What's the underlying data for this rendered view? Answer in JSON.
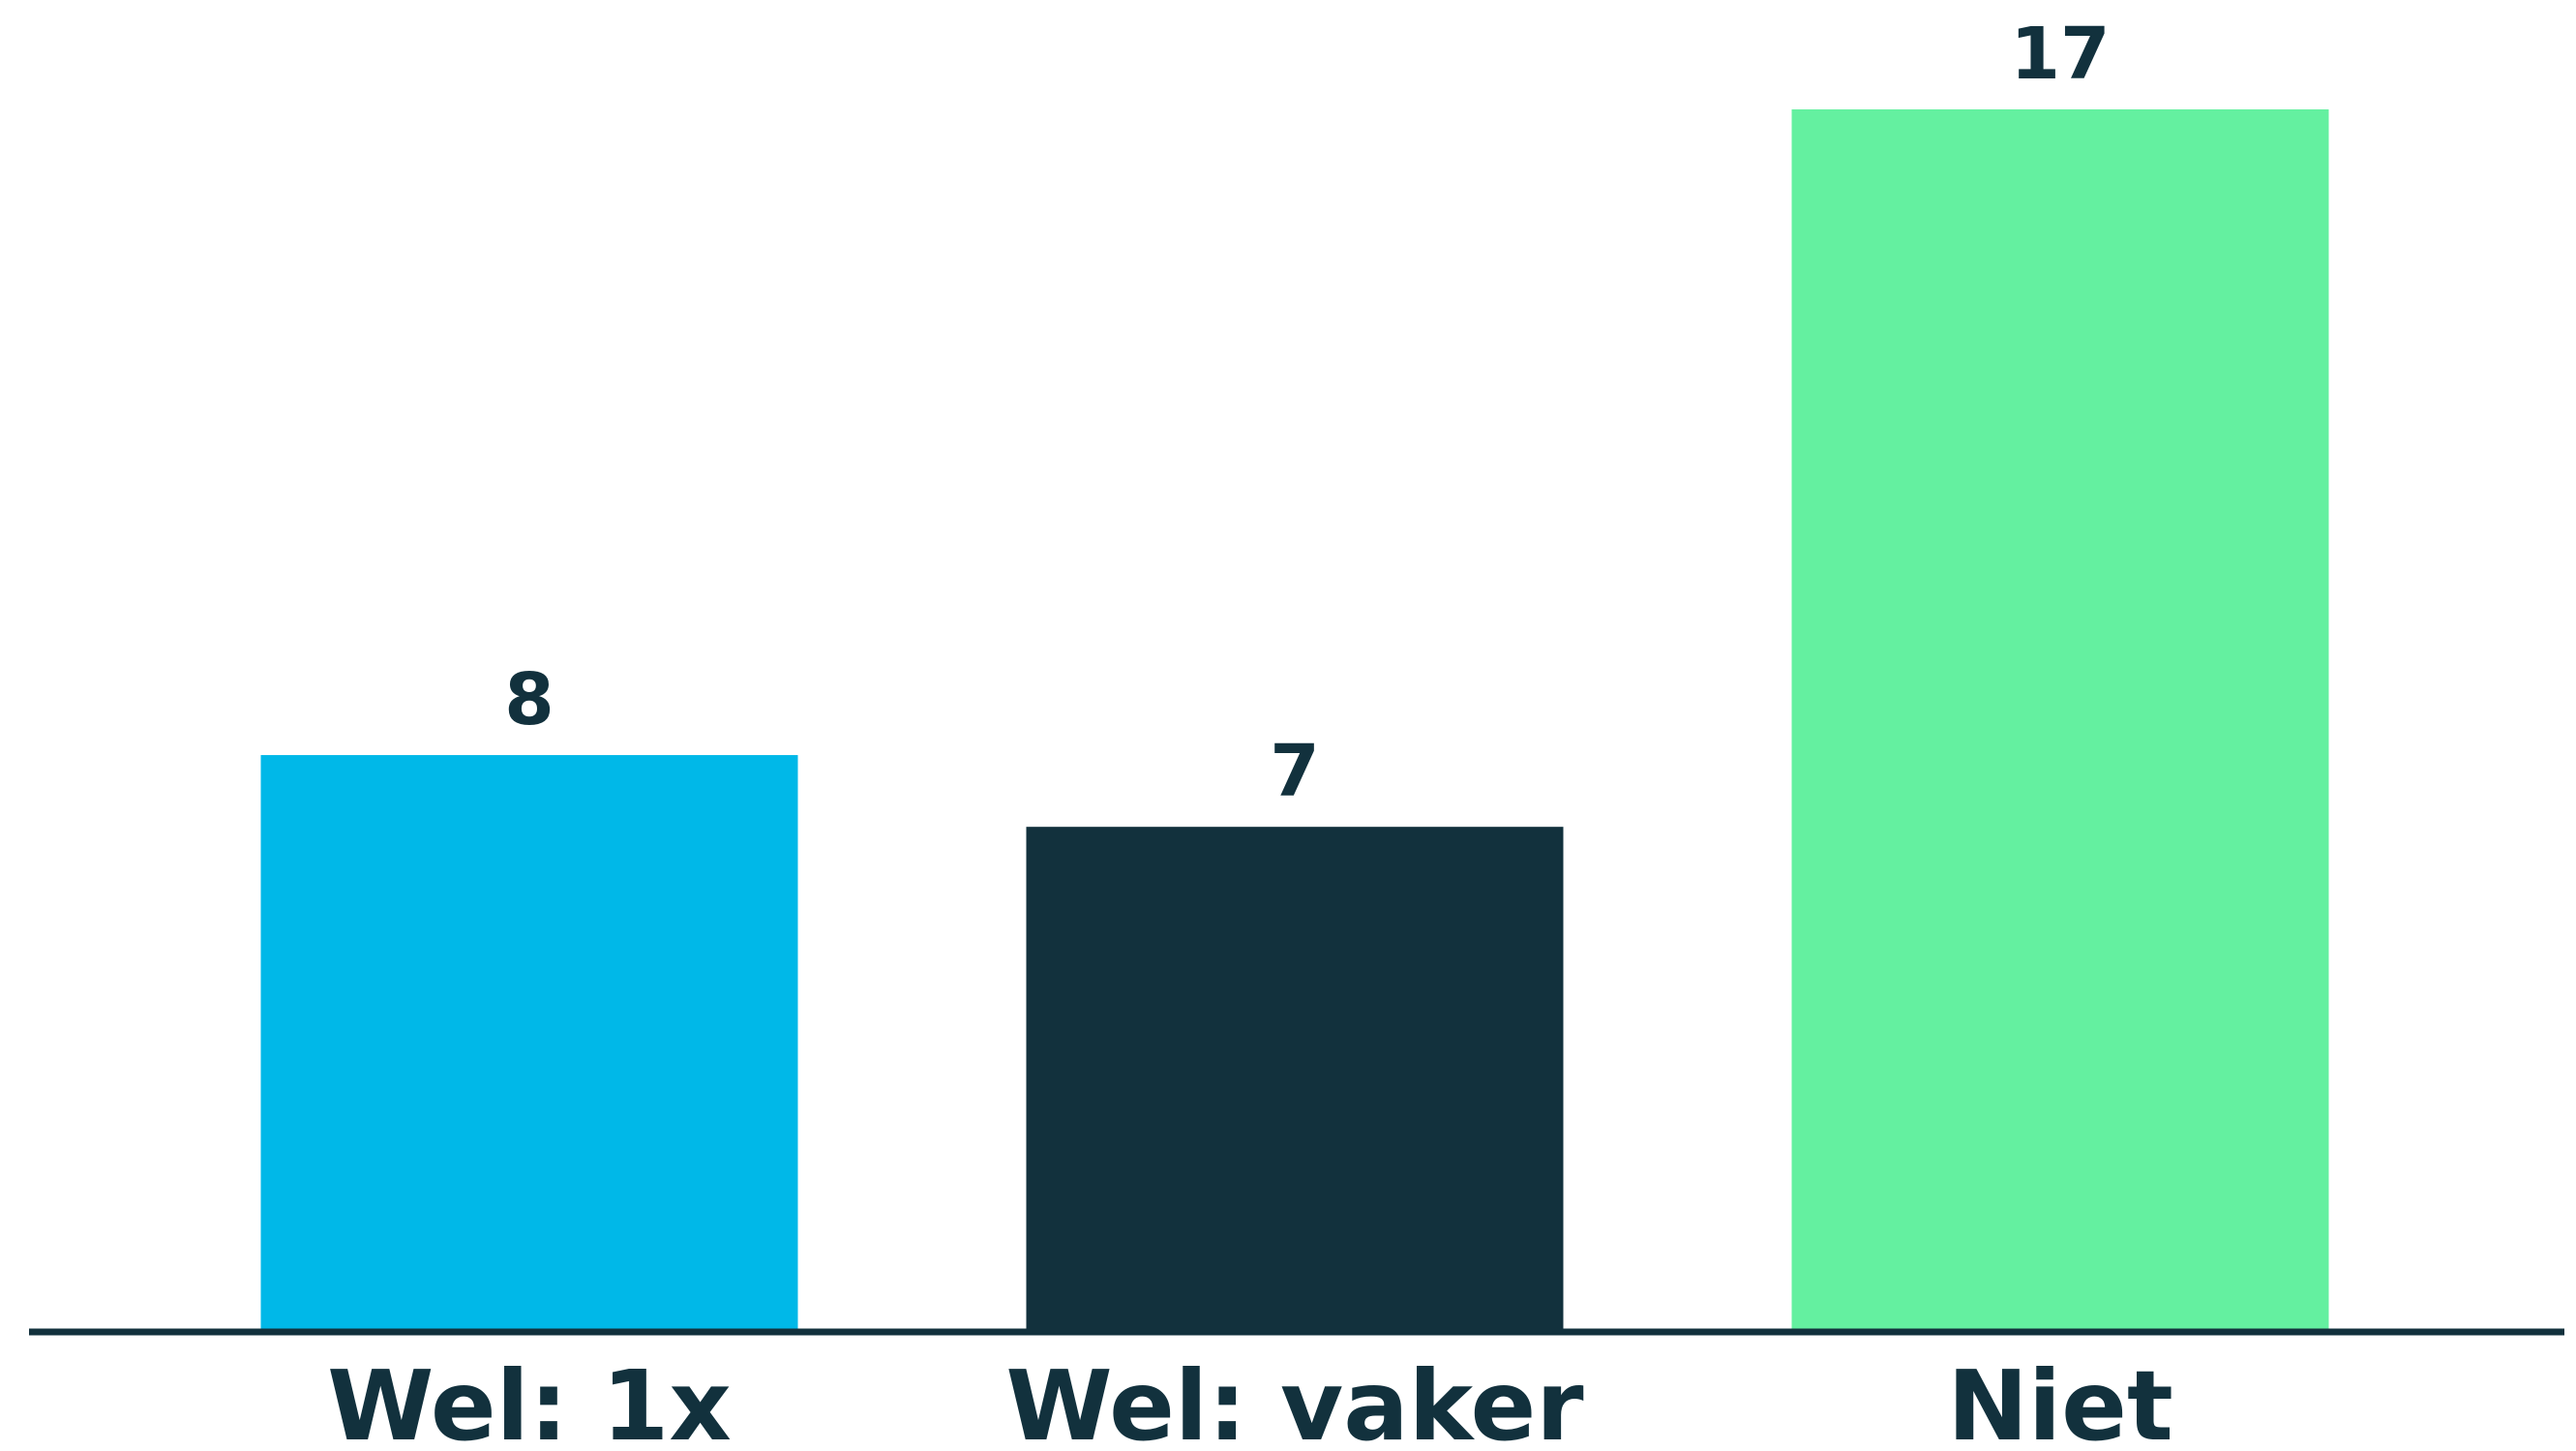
{
  "chart_data": {
    "type": "bar",
    "categories": [
      "Wel: 1x",
      "Wel: vaker",
      "Niet"
    ],
    "values": [
      8,
      7,
      17
    ],
    "data_labels": [
      "8",
      "7",
      "17"
    ],
    "colors": [
      "#00b8e8",
      "#12313d",
      "#64f0a0"
    ],
    "axis_color": "#12313d",
    "label_color": "#12313d",
    "title": "",
    "xlabel": "",
    "ylabel": "",
    "ylim": [
      0,
      17
    ],
    "grid": false,
    "legend": "none"
  }
}
